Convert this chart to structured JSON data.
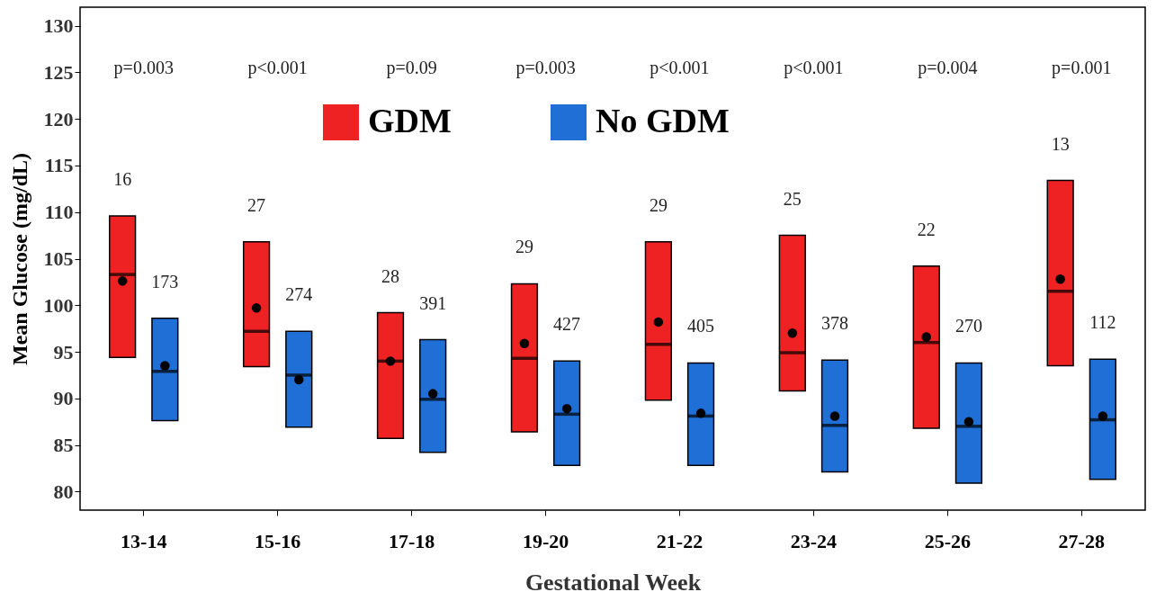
{
  "chart_data": {
    "type": "box",
    "xlabel": "Gestational Week",
    "ylabel": "Mean Glucose (mg/dL)",
    "categories": [
      "13-14",
      "15-16",
      "17-18",
      "19-20",
      "21-22",
      "23-24",
      "25-26",
      "27-28"
    ],
    "ylim": [
      78,
      132
    ],
    "yticks": [
      80,
      85,
      90,
      95,
      100,
      105,
      110,
      115,
      120,
      125,
      130
    ],
    "grid": false,
    "legend": "top",
    "series": [
      {
        "name": "GDM",
        "color": "#ee2222",
        "boxes": [
          {
            "low": 94.4,
            "q1": 94.4,
            "median": 103.3,
            "q3": 109.6,
            "high": 109.6,
            "mean": 102.6
          },
          {
            "low": 93.4,
            "q1": 93.4,
            "median": 97.2,
            "q3": 106.8,
            "high": 106.8,
            "mean": 99.7
          },
          {
            "low": 85.7,
            "q1": 85.7,
            "median": 94.0,
            "q3": 99.2,
            "high": 99.2,
            "mean": 94.0
          },
          {
            "low": 86.4,
            "q1": 86.4,
            "median": 94.3,
            "q3": 102.3,
            "high": 102.3,
            "mean": 95.9
          },
          {
            "low": 89.8,
            "q1": 89.8,
            "median": 95.8,
            "q3": 106.8,
            "high": 106.8,
            "mean": 98.2
          },
          {
            "low": 90.8,
            "q1": 90.8,
            "median": 94.9,
            "q3": 107.5,
            "high": 107.5,
            "mean": 97.0
          },
          {
            "low": 86.8,
            "q1": 86.8,
            "median": 96.0,
            "q3": 104.2,
            "high": 104.2,
            "mean": 96.6
          },
          {
            "low": 93.5,
            "q1": 93.5,
            "median": 101.5,
            "q3": 113.4,
            "high": 113.4,
            "mean": 102.8
          }
        ]
      },
      {
        "name": "No GDM",
        "color": "#1f6fd6",
        "boxes": [
          {
            "low": 87.6,
            "q1": 87.6,
            "median": 92.9,
            "q3": 98.6,
            "high": 98.6,
            "mean": 93.5
          },
          {
            "low": 86.9,
            "q1": 86.9,
            "median": 92.5,
            "q3": 97.2,
            "high": 97.2,
            "mean": 92.0
          },
          {
            "low": 84.2,
            "q1": 84.2,
            "median": 89.9,
            "q3": 96.3,
            "high": 96.3,
            "mean": 90.5
          },
          {
            "low": 82.8,
            "q1": 82.8,
            "median": 88.3,
            "q3": 94.0,
            "high": 94.0,
            "mean": 88.9
          },
          {
            "low": 82.8,
            "q1": 82.8,
            "median": 88.1,
            "q3": 93.8,
            "high": 93.8,
            "mean": 88.4
          },
          {
            "low": 82.1,
            "q1": 82.1,
            "median": 87.1,
            "q3": 94.1,
            "high": 94.1,
            "mean": 88.1
          },
          {
            "low": 80.9,
            "q1": 80.9,
            "median": 87.0,
            "q3": 93.8,
            "high": 93.8,
            "mean": 87.5
          },
          {
            "low": 81.3,
            "q1": 81.3,
            "median": 87.7,
            "q3": 94.2,
            "high": 94.2,
            "mean": 88.1
          }
        ]
      }
    ],
    "annotations": [
      "p=0.003",
      "16",
      "173",
      "p<0.001",
      "27",
      "274",
      "p=0.09",
      "28",
      "391",
      "p=0.003",
      "29",
      "427",
      "p<0.001",
      "29",
      "405",
      "p<0.001",
      "25",
      "378",
      "p=0.004",
      "22",
      "270",
      "p=0.001",
      "13",
      "112"
    ]
  }
}
